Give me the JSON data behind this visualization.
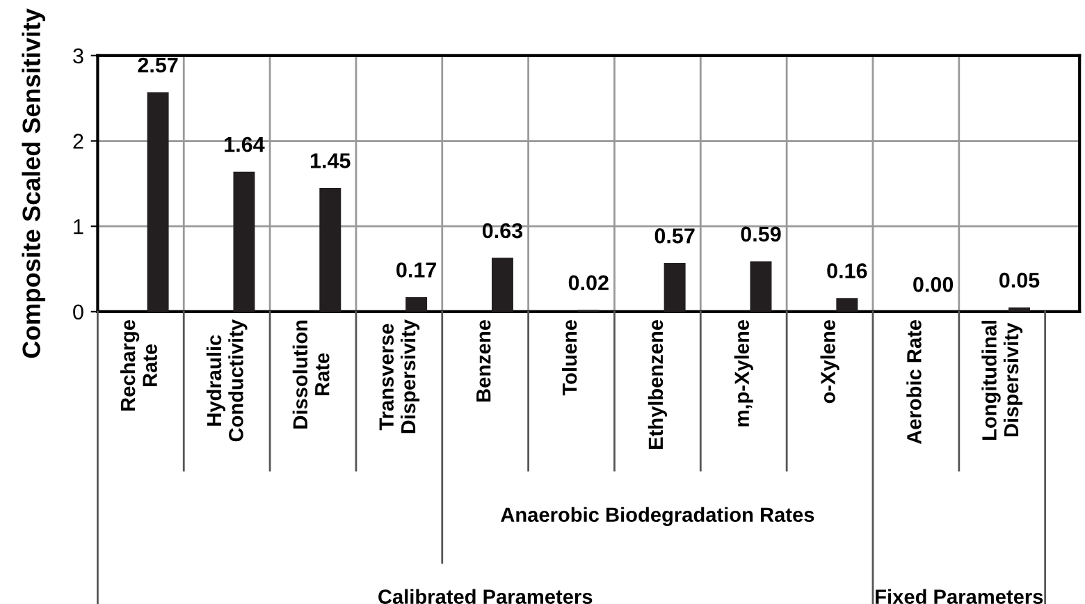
{
  "chart_data": {
    "type": "bar",
    "ylabel": "Composite Scaled Sensitivity",
    "categories": [
      "Recharge\nRate",
      "Hydraulic\nConductivity",
      "Dissolution\nRate",
      "Transverse\nDispersivity",
      "Benzene",
      "Toluene",
      "Ethylbenzene",
      "m,p-Xylene",
      "o-Xylene",
      "Aerobic Rate",
      "Longitudinal\nDispersivity"
    ],
    "values": [
      2.57,
      1.64,
      1.45,
      0.17,
      0.63,
      0.02,
      0.57,
      0.59,
      0.16,
      0.0,
      0.05
    ],
    "value_labels": [
      "2.57",
      "1.64",
      "1.45",
      "0.17",
      "0.63",
      "0.02",
      "0.57",
      "0.59",
      "0.16",
      "0.00",
      "0.05"
    ],
    "color": "#231f20",
    "ylim": [
      0,
      3
    ],
    "yticks": [
      0,
      1,
      2,
      3
    ],
    "grid": true,
    "legend": false,
    "annotations": [
      "Anaerobic Biodegradation Rates",
      "Calibrated Parameters",
      "Fixed Parameters"
    ]
  }
}
